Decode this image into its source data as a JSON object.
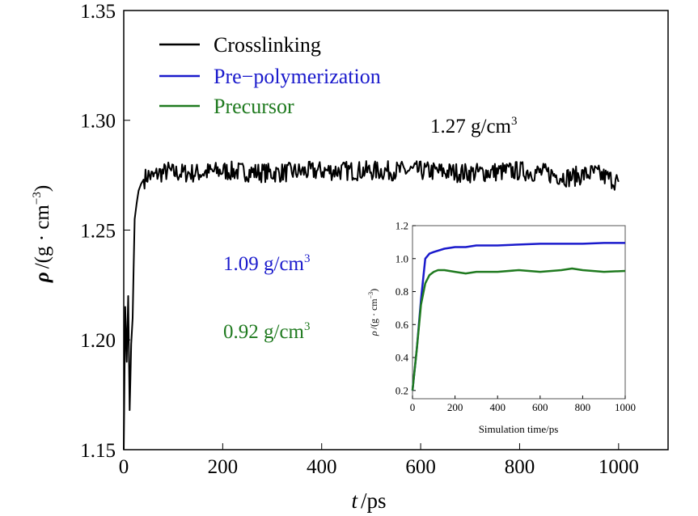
{
  "chart_data": [
    {
      "type": "line",
      "xlabel_italic": "t",
      "xlabel_unit": "/ps",
      "ylabel_italic": "ρ",
      "ylabel_unit": "/(g · cm",
      "ylabel_exp": "−3",
      "ylabel_close": ")",
      "xticks": [
        "0",
        "200",
        "400",
        "600",
        "800",
        "1000"
      ],
      "yticks": [
        "1.15",
        "1.20",
        "1.25",
        "1.30",
        "1.35"
      ],
      "xlim": [
        0,
        1100
      ],
      "ylim": [
        1.15,
        1.35
      ],
      "grid": false,
      "legend_position": "top-left",
      "legend": [
        {
          "name": "Crosslinking",
          "color": "#000000"
        },
        {
          "name": "Pre−polymerization",
          "color": "#1a1acc"
        },
        {
          "name": "Precursor",
          "color": "#1f7a1f"
        }
      ],
      "series": [
        {
          "name": "Crosslinking",
          "color": "#000000",
          "x": [
            0,
            3,
            6,
            9,
            12,
            15,
            18,
            22,
            26,
            30,
            35,
            40,
            50,
            60,
            70,
            80,
            90,
            100,
            150,
            200,
            300,
            400,
            500,
            600,
            700,
            800,
            850,
            900,
            950,
            1000
          ],
          "y": [
            1.15,
            1.215,
            1.19,
            1.22,
            1.168,
            1.198,
            1.21,
            1.255,
            1.262,
            1.268,
            1.271,
            1.273,
            1.275,
            1.274,
            1.276,
            1.276,
            1.277,
            1.276,
            1.276,
            1.277,
            1.276,
            1.277,
            1.277,
            1.277,
            1.276,
            1.277,
            1.276,
            1.274,
            1.276,
            1.272
          ]
        }
      ],
      "annotations": {
        "crosslink": {
          "value": "1.27 g/cm",
          "exp": "3",
          "color": "#000000"
        },
        "prepoly": {
          "value": "1.09 g/cm",
          "exp": "3",
          "color": "#1a1acc"
        },
        "precursor": {
          "value": "0.92 g/cm",
          "exp": "3",
          "color": "#1f7a1f"
        }
      }
    },
    {
      "type": "line",
      "role": "inset",
      "xlabel": "Simulation time/ps",
      "ylabel_italic": "ρ",
      "ylabel_unit": "/(g · cm",
      "ylabel_exp": "−3",
      "ylabel_close": ")",
      "xticks": [
        "0",
        "200",
        "400",
        "600",
        "800",
        "1000"
      ],
      "yticks": [
        "0.2",
        "0.4",
        "0.6",
        "0.8",
        "1.0",
        "1.2"
      ],
      "xlim": [
        0,
        1000
      ],
      "ylim": [
        0.15,
        1.2
      ],
      "grid": false,
      "series": [
        {
          "name": "Pre−polymerization",
          "color": "#1a1acc",
          "x": [
            0,
            20,
            40,
            60,
            80,
            100,
            150,
            200,
            250,
            300,
            400,
            500,
            600,
            700,
            800,
            900,
            1000
          ],
          "y": [
            0.2,
            0.45,
            0.75,
            1.0,
            1.03,
            1.04,
            1.06,
            1.07,
            1.07,
            1.08,
            1.08,
            1.085,
            1.09,
            1.09,
            1.09,
            1.095,
            1.095
          ]
        },
        {
          "name": "Precursor",
          "color": "#1f7a1f",
          "x": [
            0,
            20,
            40,
            60,
            80,
            100,
            120,
            150,
            200,
            250,
            300,
            400,
            500,
            600,
            700,
            750,
            800,
            900,
            1000
          ],
          "y": [
            0.2,
            0.45,
            0.72,
            0.85,
            0.9,
            0.92,
            0.93,
            0.93,
            0.92,
            0.91,
            0.92,
            0.92,
            0.93,
            0.92,
            0.93,
            0.94,
            0.93,
            0.92,
            0.925
          ]
        }
      ]
    }
  ]
}
